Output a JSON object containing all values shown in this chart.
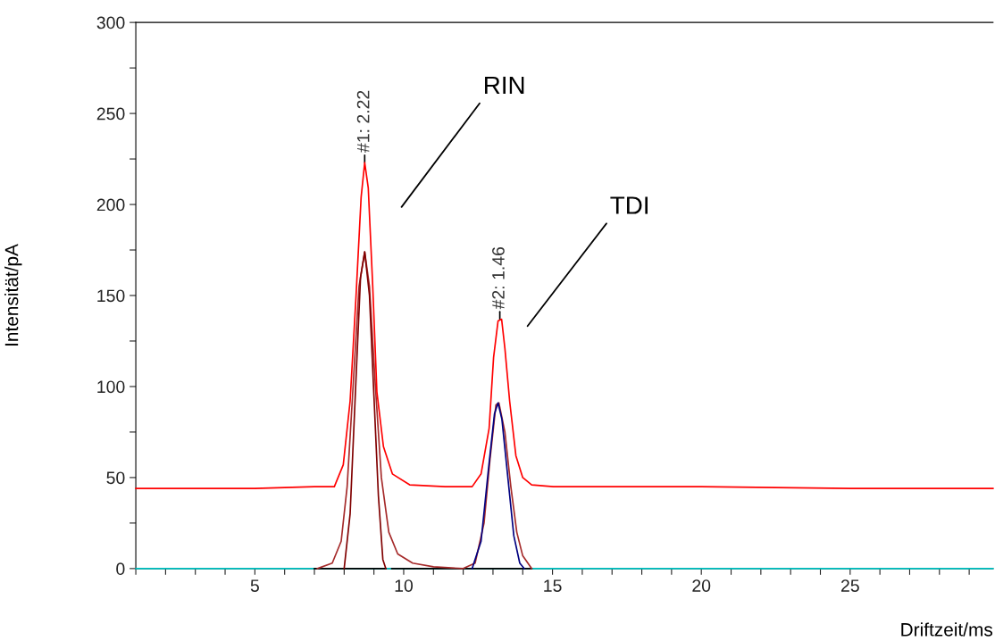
{
  "chart_data": {
    "type": "line",
    "xlabel": "Driftzeit/ms",
    "ylabel": "Intensität/pA",
    "xlim": [
      1,
      29.8
    ],
    "ylim": [
      0,
      300
    ],
    "xticks": [
      {
        "value": 1,
        "label": null
      },
      {
        "value": 2,
        "label": null
      },
      {
        "value": 3,
        "label": null
      },
      {
        "value": 4,
        "label": null
      },
      5,
      {
        "value": 6,
        "label": null
      },
      {
        "value": 7,
        "label": null
      },
      {
        "value": 8,
        "label": null
      },
      {
        "value": 9,
        "label": null
      },
      10,
      {
        "value": 11,
        "label": null
      },
      {
        "value": 12,
        "label": null
      },
      {
        "value": 13,
        "label": null
      },
      {
        "value": 14,
        "label": null
      },
      15,
      {
        "value": 16,
        "label": null
      },
      {
        "value": 17,
        "label": null
      },
      {
        "value": 18,
        "label": null
      },
      {
        "value": 19,
        "label": null
      },
      20,
      {
        "value": 21,
        "label": null
      },
      {
        "value": 22,
        "label": null
      },
      {
        "value": 23,
        "label": null
      },
      {
        "value": 24,
        "label": null
      },
      25,
      {
        "value": 26,
        "label": null
      },
      {
        "value": 27,
        "label": null
      },
      {
        "value": 28,
        "label": null
      },
      {
        "value": 29,
        "label": null
      }
    ],
    "yticks": [
      0,
      {
        "value": 25,
        "label": null
      },
      50,
      {
        "value": 75,
        "label": null
      },
      100,
      {
        "value": 125,
        "label": null
      },
      150,
      {
        "value": 175,
        "label": null
      },
      200,
      {
        "value": 225,
        "label": null
      },
      250,
      {
        "value": 275,
        "label": null
      },
      300
    ],
    "grid": false,
    "legend": false,
    "marker": "none",
    "line_style": "solid",
    "series": [
      {
        "color": "#00c0c0",
        "x": [
          1,
          29.8
        ],
        "values": [
          0,
          0
        ]
      },
      {
        "color": "#000000",
        "x": [
          7.0,
          9.4,
          9.5,
          9.6,
          14.3
        ],
        "values": [
          0,
          0,
          null,
          0,
          0
        ]
      },
      {
        "color": "#a52a2a",
        "x": [
          7.1,
          7.6,
          7.9,
          8.1,
          8.3,
          8.5,
          8.69,
          8.85,
          9.05,
          9.25,
          9.5,
          9.8,
          10.3,
          11.0,
          12.0,
          12.4,
          12.7,
          12.9,
          13.1,
          13.2,
          13.4,
          13.6,
          13.8,
          14.0,
          14.3
        ],
        "values": [
          0,
          3,
          15,
          45,
          100,
          155,
          174,
          155,
          100,
          50,
          20,
          8,
          3,
          1,
          0,
          3,
          25,
          60,
          90,
          91,
          75,
          45,
          20,
          7,
          0
        ]
      },
      {
        "color": "#800000",
        "x": [
          8.0,
          8.2,
          8.4,
          8.55,
          8.69,
          8.85,
          9.0,
          9.15,
          9.3,
          9.4
        ],
        "values": [
          0,
          30,
          105,
          160,
          174,
          150,
          95,
          40,
          5,
          0
        ]
      },
      {
        "color": "#000080",
        "x": [
          12.3,
          12.6,
          12.85,
          13.05,
          13.17,
          13.3,
          13.5,
          13.7,
          13.9,
          14.05
        ],
        "values": [
          0,
          15,
          55,
          85,
          91,
          82,
          50,
          18,
          3,
          0
        ]
      },
      {
        "color": "#ff0000",
        "x": [
          1,
          3,
          5,
          7.0,
          7.67,
          7.97,
          8.2,
          8.4,
          8.57,
          8.69,
          8.81,
          8.96,
          9.1,
          9.32,
          9.62,
          10.2,
          11.4,
          12.3,
          12.6,
          12.87,
          13.02,
          13.17,
          13.29,
          13.4,
          13.56,
          13.77,
          14.0,
          14.3,
          15.03,
          20,
          25,
          29.8
        ],
        "values": [
          44,
          44,
          44,
          45,
          45,
          57,
          92,
          150,
          204,
          223,
          209,
          155,
          97,
          67,
          52,
          46,
          45,
          45,
          52,
          77,
          116,
          136,
          137,
          121,
          92,
          62,
          50,
          46,
          45,
          45,
          44,
          44
        ]
      }
    ],
    "annotations": [
      {
        "text": "#1: 2.22",
        "x": 8.69,
        "y": 223
      },
      {
        "text": "#2: 1.46",
        "x": 13.23,
        "y": 137
      },
      "RIN",
      "TDI"
    ]
  }
}
